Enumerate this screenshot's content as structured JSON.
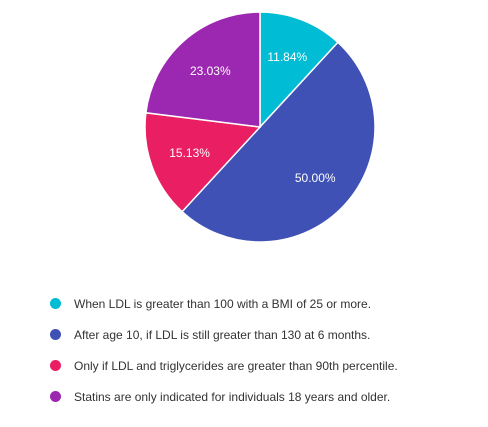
{
  "chart_data": {
    "type": "pie",
    "start_angle_deg": 0,
    "direction": "clockwise",
    "legend_position": "bottom",
    "slices": [
      {
        "label": "When LDL is greater than 100 with a BMI of 25 or more.",
        "value": 11.84,
        "value_label": "11.84%",
        "color": "#00BCD4"
      },
      {
        "label": "After age 10, if LDL is still greater than 130 at 6 months.",
        "value": 50.0,
        "value_label": "50.00%",
        "color": "#3F51B5"
      },
      {
        "label": "Only if LDL and triglycerides are greater than 90th percentile.",
        "value": 15.13,
        "value_label": "15.13%",
        "color": "#E91E63"
      },
      {
        "label": "Statins are only indicated for individuals 18 years and older.",
        "value": 23.03,
        "value_label": "23.03%",
        "color": "#9C27B0"
      }
    ]
  }
}
